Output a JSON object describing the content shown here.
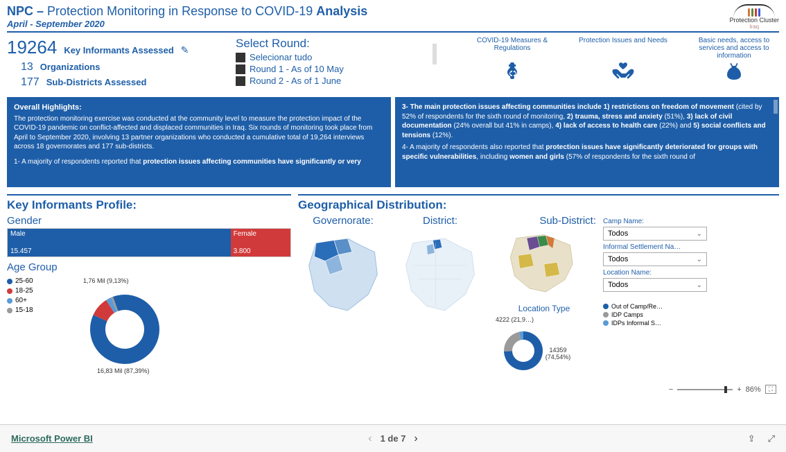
{
  "header": {
    "title_prefix": "NPC – ",
    "title_light": "Protection Monitoring in Response to COVID-19 ",
    "title_suffix": "Analysis",
    "subtitle": "April - September 2020",
    "logo_text": "Protection Cluster",
    "logo_sub": "Iraq"
  },
  "kpi": {
    "informants_num": "19264",
    "informants_label": "Key Informants Assessed",
    "orgs_num": "13",
    "orgs_label": "Organizations",
    "subd_num": "177",
    "subd_label": "Sub-Districts Assessed"
  },
  "round": {
    "title": "Select Round:",
    "items": [
      "Selecionar tudo",
      "Round 1 - As of 10 May",
      "Round 2 - As of 1 June"
    ]
  },
  "nav": [
    {
      "title": "COVID-19 Measures & Regulations",
      "icon": "medical"
    },
    {
      "title": "Protection Issues and Needs",
      "icon": "hands"
    },
    {
      "title": "Basic needs, access to services and access to information",
      "icon": "money"
    }
  ],
  "highlights": {
    "left_title": "Overall Highlights:",
    "left_body": "The protection monitoring exercise was conducted at the community level to measure the protection impact of the COVID-19 pandemic on conflict-affected and displaced communities in Iraq. Six rounds of monitoring took place from April to September 2020, involving 13 partner organizations who conducted a cumulative total of 19,264 interviews across 18 governorates and 177 sub-districts.",
    "left_foot": "1- A majority of respondents reported that protection issues affecting communities have significantly or very",
    "right_p1a": "3- The main protection issues affecting communities include 1) restrictions on freedom of movement ",
    "right_p1b": "(cited by 52% of respondents for the sixth round of monitoring, 2) trauma, stress and anxiety (51%), 3) lack of civil documentation (24% overall but 41% in camps), 4) lack of access to health care (22%) and 5) social conflicts and tensions (12%).",
    "right_p2a": "4- A majority of respondents also reported that protection issues have significantly deteriorated for groups with specific vulnerabilities, including women and girls ",
    "right_p2b": "(57% of respondents for the sixth round of"
  },
  "profile": {
    "title": "Key Informants Profile:",
    "gender": {
      "label": "Gender",
      "male_label": "Male",
      "male_value": "15.457",
      "male_pct": 80,
      "male_color": "#1e5ea8",
      "female_label": "Female",
      "female_value": "3.800",
      "female_pct": 20,
      "female_color": "#d13a3a"
    },
    "age": {
      "label": "Age Group",
      "legend": [
        {
          "label": "25-60",
          "color": "#1e5ea8"
        },
        {
          "label": "18-25",
          "color": "#d13a3a"
        },
        {
          "label": "60+",
          "color": "#5a9bd5"
        },
        {
          "label": "15-18",
          "color": "#9a9a9a"
        }
      ],
      "slices": [
        {
          "pct": 87.39,
          "color": "#1e5ea8"
        },
        {
          "pct": 9.13,
          "color": "#d13a3a"
        },
        {
          "pct": 2.5,
          "color": "#5a9bd5"
        },
        {
          "pct": 0.98,
          "color": "#9a9a9a"
        }
      ],
      "label_top": "1,76 Mil (9,13%)",
      "label_bottom": "16,83 Mil (87,39%)"
    }
  },
  "geo": {
    "title": "Geographical Distribution:",
    "gov": "Governorate:",
    "dist": "District:",
    "subd": "Sub-District:",
    "loc_type_title": "Location Type",
    "loc_type_labels": {
      "a": "4222 (21,9…)",
      "b": "14359 (74,54%)"
    },
    "loc_type_slices": [
      {
        "pct": 74.54,
        "color": "#1e5ea8"
      },
      {
        "pct": 21.9,
        "color": "#9a9a9a"
      },
      {
        "pct": 3.56,
        "color": "#5a9bd5"
      }
    ],
    "loc_legend": [
      {
        "label": "Out of Camp/Re…",
        "color": "#1e5ea8"
      },
      {
        "label": "IDP Camps",
        "color": "#9a9a9a"
      },
      {
        "label": "IDPs Informal S…",
        "color": "#5a9bd5"
      }
    ],
    "filters": {
      "camp": "Camp Name:",
      "settlement": "Informal Settlement Na…",
      "location": "Location Name:",
      "value": "Todos"
    }
  },
  "footer": {
    "brand": "Microsoft Power BI",
    "page": "1 de 7",
    "zoom": "86%"
  },
  "colors": {
    "primary": "#1e5ea8",
    "map_light": "#cfe0f0",
    "map_mid": "#8db4dc",
    "map_dark": "#2a6db8"
  }
}
